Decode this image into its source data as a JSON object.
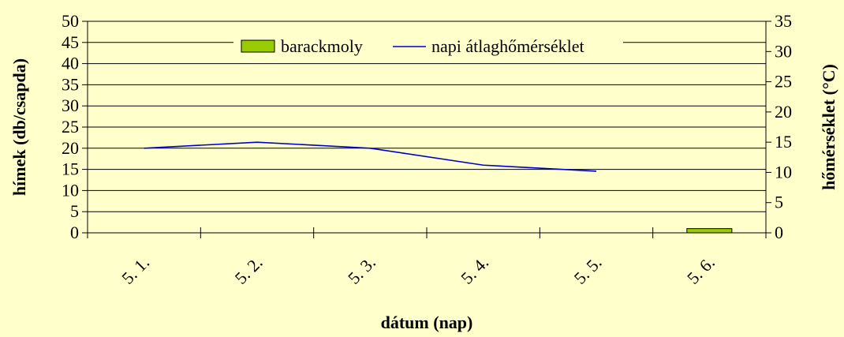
{
  "chart_data": {
    "type": "bar+line",
    "categories": [
      "5. 1.",
      "5. 2.",
      "5. 3.",
      "5. 4.",
      "5. 5.",
      "5. 6."
    ],
    "series": [
      {
        "name": "barackmoly",
        "type": "bar",
        "axis": "left",
        "values": [
          0,
          0,
          0,
          0,
          0,
          1
        ],
        "color": "#99CC00"
      },
      {
        "name": "napi átlaghőmérséklet",
        "type": "line",
        "axis": "right",
        "values": [
          14,
          15,
          14,
          11.2,
          10.2,
          null
        ],
        "color": "#0000CC"
      }
    ],
    "xlabel": "dátum (nap)",
    "ylabel_left": "hímek (db/csapda)",
    "ylabel_right": "hőmérséklet (°C)",
    "ylim_left": [
      0,
      50
    ],
    "yticks_left": [
      0,
      5,
      10,
      15,
      20,
      25,
      30,
      35,
      40,
      45,
      50
    ],
    "ylim_right": [
      0,
      35
    ],
    "yticks_right": [
      0,
      5,
      10,
      15,
      20,
      25,
      30,
      35
    ],
    "grid": true,
    "legend": "top-center"
  }
}
